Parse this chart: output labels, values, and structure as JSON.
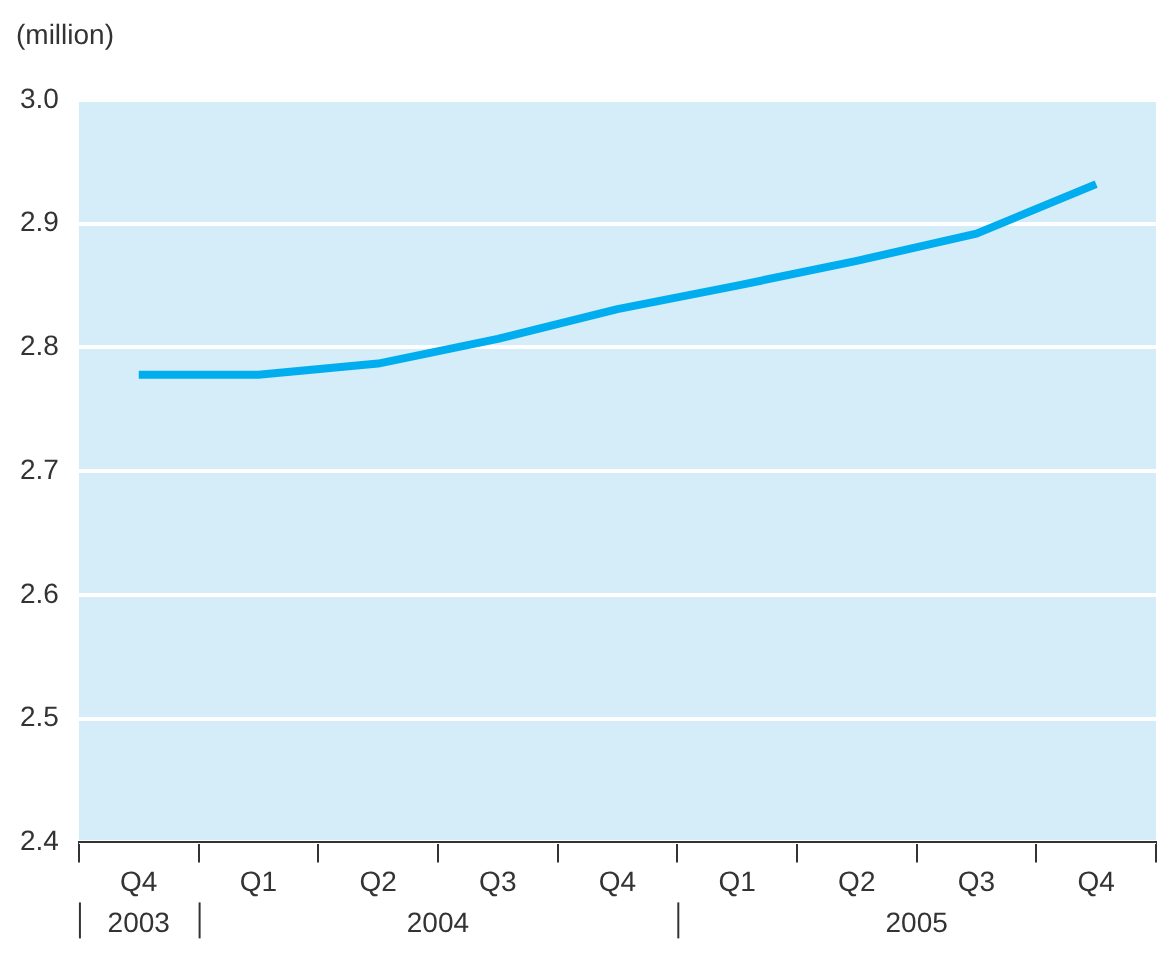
{
  "chart_data": {
    "type": "line",
    "ylabel": "(million)",
    "categories": [
      "Q4",
      "Q1",
      "Q2",
      "Q3",
      "Q4",
      "Q1",
      "Q2",
      "Q3",
      "Q4"
    ],
    "series": [
      {
        "color": "#00aeef",
        "values": [
          2.778,
          2.778,
          2.787,
          2.807,
          2.831,
          2.85,
          2.87,
          2.892,
          2.932
        ]
      }
    ],
    "ylim": [
      2.4,
      3.0
    ],
    "yticks": [
      {
        "value": 2.4,
        "label": "2.4"
      },
      {
        "value": 2.5,
        "label": "2.5"
      },
      {
        "value": 2.6,
        "label": "2.6"
      },
      {
        "value": 2.7,
        "label": "2.7"
      },
      {
        "value": 2.8,
        "label": "2.8"
      },
      {
        "value": 2.9,
        "label": "2.9"
      },
      {
        "value": 3.0,
        "label": "3.0"
      }
    ],
    "annotations": [
      "2003",
      "2004",
      "2005"
    ],
    "grid": "y",
    "legend": false,
    "marker": "none",
    "line_style": "solid"
  }
}
